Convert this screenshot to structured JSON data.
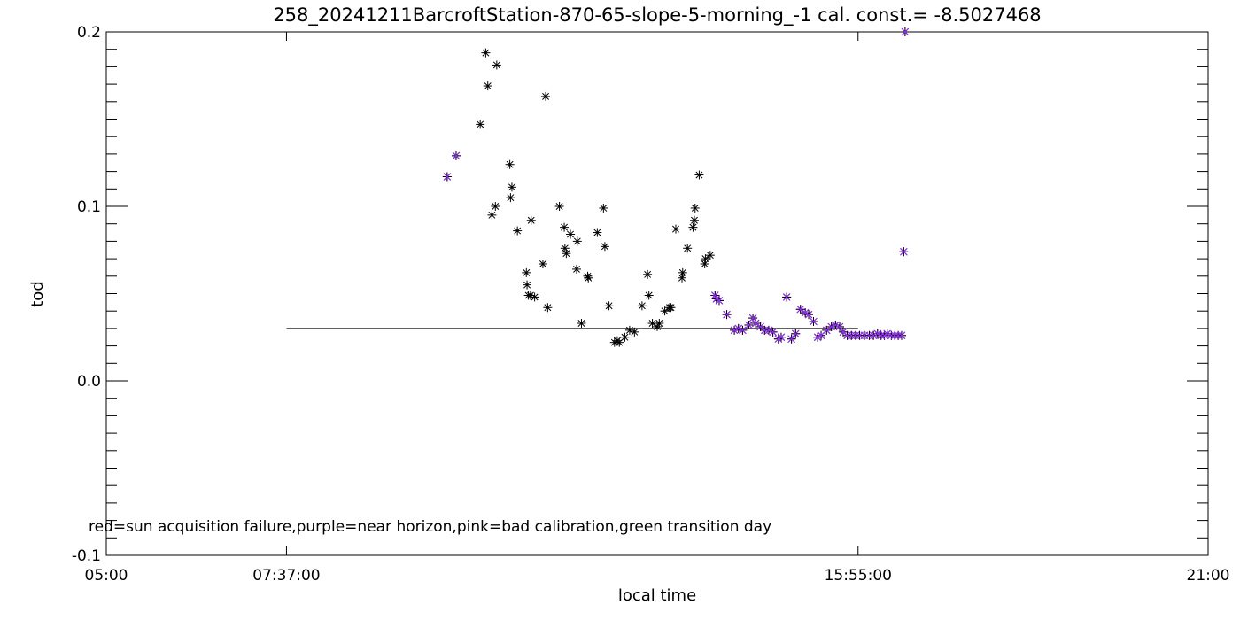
{
  "chart_data": {
    "type": "scatter",
    "title": "258_20241211BarcroftStation-870-65-slope-5-morning_-1 cal. const.= -8.5027468",
    "xlabel": "local time",
    "ylabel": "tod",
    "x_unit": "hours",
    "xlim": [
      5,
      21
    ],
    "ylim": [
      -0.1,
      0.2
    ],
    "x_tick_values": [
      5,
      7.6167,
      15.9167,
      21
    ],
    "x_tick_labels": [
      "05:00",
      "07:37:00",
      "15:55:00",
      "21:00"
    ],
    "y_tick_values": [
      -0.1,
      0.0,
      0.1,
      0.2
    ],
    "y_tick_labels": [
      "-0.1",
      "0.0",
      "0.1",
      "0.2"
    ],
    "reference_line": {
      "y": 0.03,
      "x_start": 7.6167,
      "x_end": 15.9167
    },
    "legend_note": "red=sun acquisition failure,purple=near horizon,pink=bad calibration,green transition day",
    "colors": {
      "normal": "#000000",
      "near_horizon": "#9933ff"
    },
    "series": [
      {
        "category": "normal",
        "points": [
          [
            10.51,
            0.188
          ],
          [
            10.54,
            0.169
          ],
          [
            10.67,
            0.181
          ],
          [
            10.43,
            0.147
          ],
          [
            10.86,
            0.124
          ],
          [
            10.89,
            0.111
          ],
          [
            10.87,
            0.105
          ],
          [
            10.6,
            0.095
          ],
          [
            10.65,
            0.1
          ],
          [
            10.97,
            0.086
          ],
          [
            11.38,
            0.163
          ],
          [
            11.17,
            0.092
          ],
          [
            11.1,
            0.062
          ],
          [
            11.11,
            0.055
          ],
          [
            11.13,
            0.049
          ],
          [
            11.16,
            0.049
          ],
          [
            11.22,
            0.048
          ],
          [
            11.34,
            0.067
          ],
          [
            11.41,
            0.042
          ],
          [
            11.58,
            0.1
          ],
          [
            11.65,
            0.088
          ],
          [
            11.66,
            0.076
          ],
          [
            11.68,
            0.073
          ],
          [
            11.74,
            0.084
          ],
          [
            11.84,
            0.08
          ],
          [
            11.83,
            0.064
          ],
          [
            11.9,
            0.033
          ],
          [
            11.99,
            0.06
          ],
          [
            12.0,
            0.059
          ],
          [
            12.13,
            0.085
          ],
          [
            12.22,
            0.099
          ],
          [
            12.24,
            0.077
          ],
          [
            12.3,
            0.043
          ],
          [
            12.38,
            0.022
          ],
          [
            12.42,
            0.023
          ],
          [
            12.45,
            0.022
          ],
          [
            12.53,
            0.025
          ],
          [
            12.6,
            0.029
          ],
          [
            12.67,
            0.028
          ],
          [
            12.78,
            0.043
          ],
          [
            12.86,
            0.061
          ],
          [
            12.88,
            0.049
          ],
          [
            12.93,
            0.033
          ],
          [
            13.0,
            0.031
          ],
          [
            13.03,
            0.033
          ],
          [
            13.11,
            0.04
          ],
          [
            13.18,
            0.042
          ],
          [
            13.2,
            0.042
          ],
          [
            13.27,
            0.087
          ],
          [
            13.36,
            0.059
          ],
          [
            13.37,
            0.062
          ],
          [
            13.44,
            0.076
          ],
          [
            13.52,
            0.088
          ],
          [
            13.54,
            0.092
          ],
          [
            13.55,
            0.099
          ],
          [
            13.61,
            0.118
          ],
          [
            13.69,
            0.067
          ],
          [
            13.7,
            0.07
          ],
          [
            13.77,
            0.072
          ]
        ]
      },
      {
        "category": "near_horizon",
        "points": [
          [
            9.95,
            0.117
          ],
          [
            10.08,
            0.129
          ],
          [
            13.84,
            0.049
          ],
          [
            13.86,
            0.047
          ],
          [
            13.9,
            0.046
          ],
          [
            14.01,
            0.038
          ],
          [
            14.12,
            0.029
          ],
          [
            14.18,
            0.03
          ],
          [
            14.24,
            0.029
          ],
          [
            14.33,
            0.032
          ],
          [
            14.39,
            0.036
          ],
          [
            14.43,
            0.033
          ],
          [
            14.5,
            0.031
          ],
          [
            14.56,
            0.029
          ],
          [
            14.62,
            0.029
          ],
          [
            14.68,
            0.028
          ],
          [
            14.76,
            0.024
          ],
          [
            14.8,
            0.025
          ],
          [
            14.88,
            0.048
          ],
          [
            14.95,
            0.024
          ],
          [
            15.01,
            0.027
          ],
          [
            15.08,
            0.041
          ],
          [
            15.15,
            0.039
          ],
          [
            15.2,
            0.038
          ],
          [
            15.27,
            0.034
          ],
          [
            15.33,
            0.025
          ],
          [
            15.38,
            0.026
          ],
          [
            15.46,
            0.029
          ],
          [
            15.53,
            0.031
          ],
          [
            15.59,
            0.032
          ],
          [
            15.65,
            0.031
          ],
          [
            15.7,
            0.028
          ],
          [
            15.76,
            0.026
          ],
          [
            15.82,
            0.026
          ],
          [
            15.88,
            0.026
          ],
          [
            15.94,
            0.026
          ],
          [
            16.01,
            0.026
          ],
          [
            16.08,
            0.026
          ],
          [
            16.14,
            0.026
          ],
          [
            16.2,
            0.027
          ],
          [
            16.25,
            0.026
          ],
          [
            16.3,
            0.026
          ],
          [
            16.34,
            0.027
          ],
          [
            16.4,
            0.026
          ],
          [
            16.45,
            0.026
          ],
          [
            16.5,
            0.026
          ],
          [
            16.55,
            0.026
          ],
          [
            16.58,
            0.074
          ],
          [
            16.6,
            0.2
          ]
        ]
      }
    ]
  }
}
